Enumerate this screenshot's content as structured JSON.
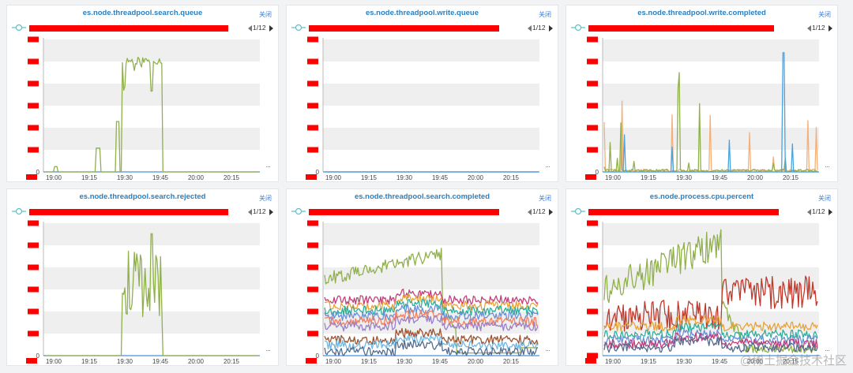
{
  "close_label": "关闭",
  "pager_text": "1/12",
  "more_label": "···",
  "x_ticks": [
    "19:00",
    "19:15",
    "19:30",
    "19:45",
    "20:00",
    "20:15"
  ],
  "watermark": "@稀土掘金技术社区",
  "colors": {
    "redaction": "#ff0000",
    "title": "#2a7fc1",
    "axis": "#4a90d9",
    "band": "#efefef"
  },
  "panels": [
    {
      "title": "es.node.threadpool.search.queue",
      "chart_data": {
        "type": "line",
        "x_range": [
          "19:00",
          "20:27"
        ],
        "y_zero_label": "0",
        "legend_bar_fraction": 0.91,
        "series": [
          {
            "color": "#8fb04a",
            "shape": "search_queue"
          }
        ]
      }
    },
    {
      "title": "es.node.threadpool.write.queue",
      "chart_data": {
        "type": "line",
        "x_range": [
          "19:00",
          "20:27"
        ],
        "y_zero_label": "0",
        "legend_bar_fraction": 0.87,
        "series": [
          {
            "color": "#4a90d9",
            "shape": "flat"
          }
        ]
      }
    },
    {
      "title": "es.node.threadpool.write.completed",
      "chart_data": {
        "type": "line",
        "x_range": [
          "19:00",
          "20:27"
        ],
        "y_zero_label": "0",
        "legend_bar_fraction": 0.85,
        "series": [
          {
            "color": "#f4b07a",
            "shape": "spikes_a"
          },
          {
            "color": "#8fb04a",
            "shape": "spikes_b"
          },
          {
            "color": "#4aa3df",
            "shape": "spikes_c"
          }
        ]
      }
    },
    {
      "title": "es.node.threadpool.search.rejected",
      "chart_data": {
        "type": "line",
        "x_range": [
          "19:00",
          "20:27"
        ],
        "y_zero_label": "0",
        "legend_bar_fraction": 0.91,
        "series": [
          {
            "color": "#8fb04a",
            "shape": "rejected"
          }
        ]
      }
    },
    {
      "title": "es.node.threadpool.search.completed",
      "chart_data": {
        "type": "line",
        "x_range": [
          "19:00",
          "20:27"
        ],
        "y_zero_label": "0",
        "legend_bar_fraction": 0.87,
        "series": [
          {
            "color": "#8fb04a",
            "shape": "sc_main"
          },
          {
            "color": "#c2407a",
            "shape": "band",
            "level": 0.42
          },
          {
            "color": "#e8a33b",
            "shape": "band",
            "level": 0.38
          },
          {
            "color": "#2fae9a",
            "shape": "band",
            "level": 0.34
          },
          {
            "color": "#6b8fd6",
            "shape": "band",
            "level": 0.3
          },
          {
            "color": "#f08060",
            "shape": "band",
            "level": 0.26
          },
          {
            "color": "#9b7fc9",
            "shape": "band",
            "level": 0.22
          },
          {
            "color": "#a0522d",
            "shape": "band",
            "level": 0.12
          },
          {
            "color": "#70b7e0",
            "shape": "band",
            "level": 0.08
          },
          {
            "color": "#556b8d",
            "shape": "band",
            "level": 0.03
          }
        ]
      }
    },
    {
      "title": "es.node.process.cpu.percent",
      "chart_data": {
        "type": "line",
        "x_range": [
          "19:00",
          "20:27"
        ],
        "y_zero_label": "",
        "legend_bar_fraction": 0.87,
        "series": [
          {
            "color": "#8fb04a",
            "shape": "cpu_main"
          },
          {
            "color": "#c0392b",
            "shape": "cpu_red"
          },
          {
            "color": "#e8a33b",
            "shape": "band",
            "level": 0.22
          },
          {
            "color": "#2fae9a",
            "shape": "band",
            "level": 0.16
          },
          {
            "color": "#6b8fd6",
            "shape": "band",
            "level": 0.12
          },
          {
            "color": "#c2407a",
            "shape": "band",
            "level": 0.09
          },
          {
            "color": "#556b8d",
            "shape": "band",
            "level": 0.06
          }
        ]
      }
    }
  ]
}
